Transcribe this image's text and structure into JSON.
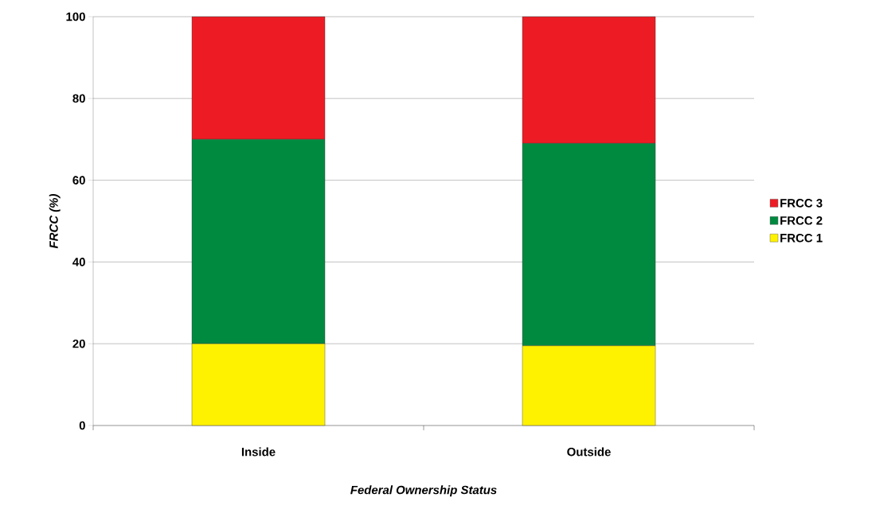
{
  "chart_data": {
    "type": "bar",
    "stacked": true,
    "xlabel": "Federal Ownership Status",
    "ylabel": "FRCC (%)",
    "categories": [
      "Inside",
      "Outside"
    ],
    "series": [
      {
        "name": "FRCC 1",
        "color": "#fff200",
        "values": [
          20,
          19.5
        ]
      },
      {
        "name": "FRCC 2",
        "color": "#008a40",
        "values": [
          50,
          49.5
        ]
      },
      {
        "name": "FRCC 3",
        "color": "#ed1c24",
        "values": [
          30,
          31
        ]
      }
    ],
    "ylim": [
      0,
      100
    ],
    "yticks": [
      0,
      20,
      40,
      60,
      80,
      100
    ],
    "grid": "y",
    "legend": "right"
  }
}
